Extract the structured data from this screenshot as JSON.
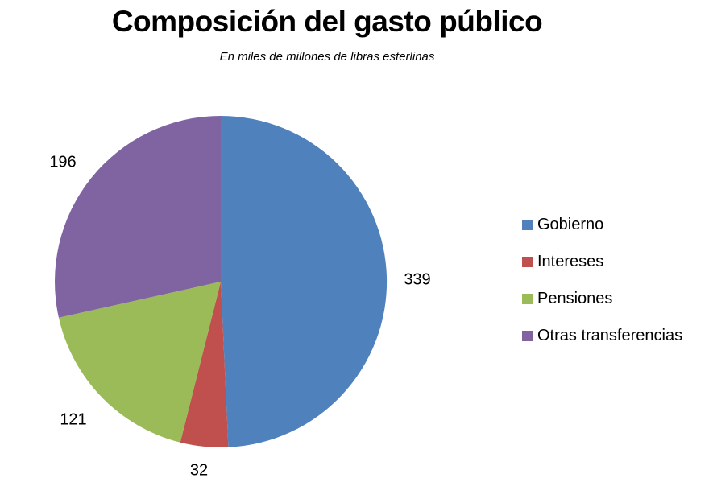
{
  "chart_data": {
    "type": "pie",
    "title": "Composición del gasto público",
    "subtitle": "En miles de millones de libras esterlinas",
    "categories": [
      "Gobierno",
      "Intereses",
      "Pensiones",
      "Otras transferencias"
    ],
    "values": [
      339,
      32,
      121,
      196
    ],
    "colors": [
      "#4F81BD",
      "#C0504D",
      "#9BBB59",
      "#8064A2"
    ],
    "data_labels": [
      "339",
      "32",
      "121",
      "196"
    ],
    "start_angle": "12 o'clock",
    "direction": "clockwise",
    "legend_position": "right"
  }
}
